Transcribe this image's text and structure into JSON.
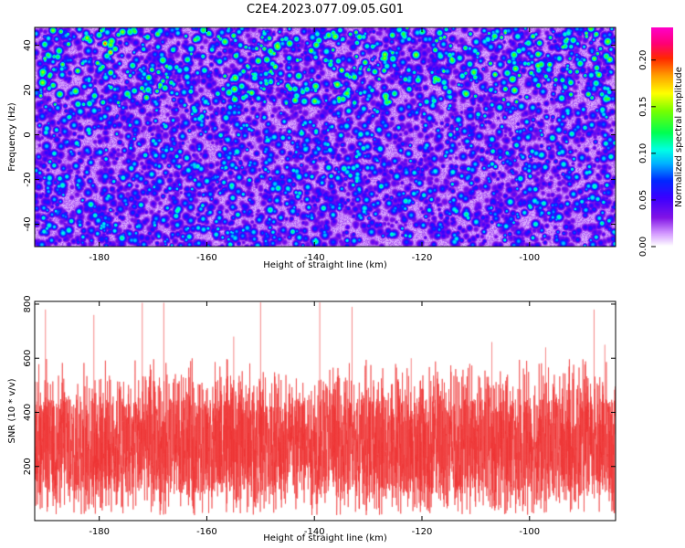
{
  "title": "C2E4.2023.077.09.05.G01",
  "chart_data": [
    {
      "type": "heatmap",
      "xlabel": "Height of straight line (km)",
      "ylabel": "Frequency (Hz)",
      "xlim": [
        -192,
        -84
      ],
      "ylim": [
        -50,
        48
      ],
      "xticks": [
        -180,
        -160,
        -140,
        -120,
        -100
      ],
      "yticks": [
        -40,
        -20,
        0,
        20,
        40
      ],
      "colorbar": {
        "label": "Normalized spectral amplitude",
        "range": [
          0,
          0.235
        ],
        "ticks": [
          "0.00",
          "0.05",
          "0.10",
          "0.15",
          "0.20"
        ],
        "tick_values": [
          0,
          0.05,
          0.1,
          0.15,
          0.2
        ],
        "colormap": "rainbow (white-violet-blue-cyan-green-yellow-red-magenta)"
      },
      "description_values": {
        "background_amplitude": 0.03,
        "hotspots": [
          {
            "x": -179,
            "y": 41,
            "value": 0.2
          },
          {
            "x": -178,
            "y": 37,
            "value": 0.19
          },
          {
            "x": -135,
            "y": 29,
            "value": 0.16
          },
          {
            "x": -112,
            "y": 39,
            "value": 0.14
          },
          {
            "x": -86,
            "y": 0,
            "value": 0.1
          },
          {
            "x": -188,
            "y": 43,
            "value": 0.1
          },
          {
            "x": -150,
            "y": 27,
            "value": 0.09
          }
        ]
      }
    },
    {
      "type": "line",
      "xlabel": "Height of straight line (km)",
      "ylabel": "SNR (10 * v/v)",
      "xlim": [
        -192,
        -84
      ],
      "ylim": [
        0,
        810
      ],
      "xticks": [
        -180,
        -160,
        -140,
        -120,
        -100
      ],
      "yticks": [
        200,
        400,
        600,
        800
      ],
      "series": [
        {
          "color": "#ee3333",
          "band_typical": [
            100,
            450
          ],
          "spikes": [
            {
              "x": -190,
              "y": 780
            },
            {
              "x": -181,
              "y": 760
            },
            {
              "x": -172,
              "y": 805
            },
            {
              "x": -168,
              "y": 805
            },
            {
              "x": -155,
              "y": 680
            },
            {
              "x": -150,
              "y": 810
            },
            {
              "x": -139,
              "y": 810
            },
            {
              "x": -133,
              "y": 790
            },
            {
              "x": -122,
              "y": 600
            },
            {
              "x": -107,
              "y": 660
            },
            {
              "x": -97,
              "y": 640
            },
            {
              "x": -88,
              "y": 780
            },
            {
              "x": -86,
              "y": 650
            }
          ]
        }
      ]
    }
  ]
}
